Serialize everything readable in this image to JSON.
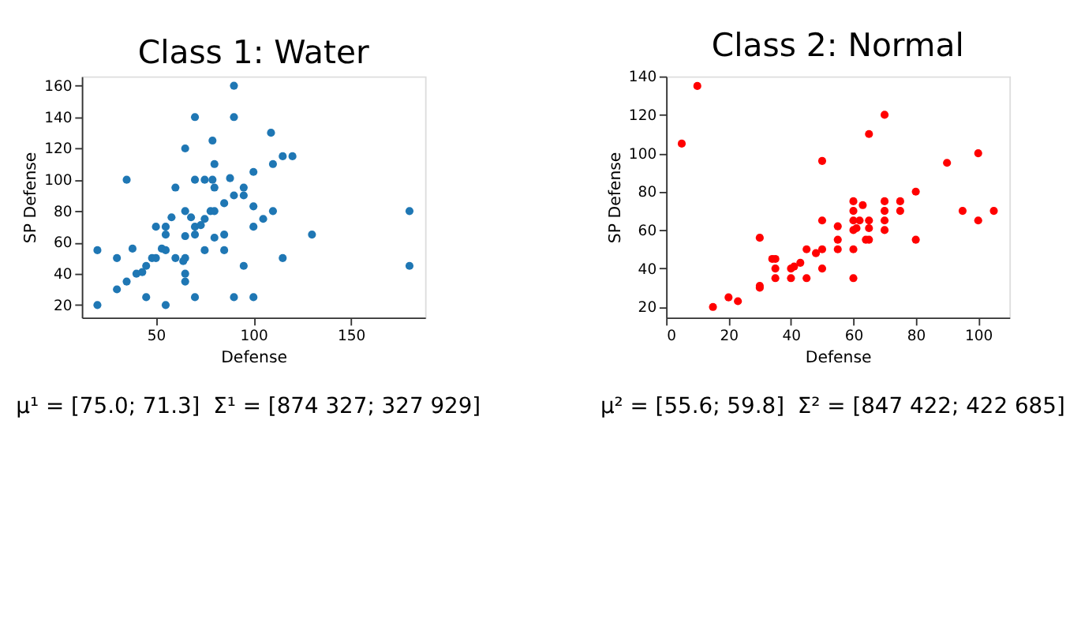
{
  "chart_data": [
    {
      "type": "scatter",
      "title": "Class 1: Water",
      "xlabel": "Defense",
      "ylabel": "SP Defense",
      "xlim": [
        12,
        188
      ],
      "xticks": [
        50,
        100,
        150
      ],
      "ylim": [
        12,
        166
      ],
      "yticks": [
        20,
        40,
        60,
        80,
        100,
        120,
        140,
        160
      ],
      "grid": false,
      "annotations": [
        "μ¹ = [75.0; 71.3]",
        "Σ¹ = [874 327; 327 929]"
      ],
      "series": [
        {
          "color": "#1f77b4",
          "x": [
            20,
            20,
            30,
            30,
            35,
            35,
            38,
            40,
            43,
            45,
            45,
            48,
            50,
            50,
            53,
            55,
            55,
            55,
            55,
            58,
            60,
            60,
            64,
            65,
            65,
            65,
            65,
            65,
            65,
            68,
            70,
            70,
            70,
            70,
            70,
            73,
            75,
            75,
            75,
            78,
            79,
            79,
            80,
            80,
            80,
            80,
            85,
            85,
            85,
            88,
            90,
            90,
            90,
            90,
            95,
            95,
            95,
            100,
            100,
            100,
            100,
            105,
            109,
            110,
            110,
            115,
            115,
            120,
            130,
            180,
            180
          ],
          "values": [
            55,
            20,
            50,
            30,
            100,
            35,
            56,
            40,
            41,
            45,
            25,
            50,
            70,
            50,
            56,
            70,
            65,
            55,
            20,
            76,
            95,
            50,
            48,
            120,
            80,
            64,
            50,
            40,
            35,
            76,
            140,
            100,
            70,
            65,
            25,
            71,
            100,
            75,
            55,
            80,
            125,
            100,
            80,
            110,
            95,
            63,
            85,
            65,
            55,
            101,
            160,
            140,
            90,
            25,
            95,
            90,
            45,
            105,
            83,
            70,
            25,
            75,
            130,
            110,
            80,
            115,
            50,
            115,
            65,
            80,
            45
          ]
        }
      ]
    },
    {
      "type": "scatter",
      "title": "Class 2: Normal",
      "xlabel": "Defense",
      "ylabel": "SP Defense",
      "xlim": [
        0,
        110
      ],
      "xticks": [
        0,
        20,
        40,
        60,
        80,
        100
      ],
      "ylim": [
        14.5,
        140
      ],
      "yticks": [
        20,
        40,
        60,
        80,
        100,
        120,
        140
      ],
      "grid": false,
      "annotations": [
        "μ² = [55.6; 59.8]",
        "Σ² = [847 422; 422 685]"
      ],
      "series": [
        {
          "color": "#ff0000",
          "x": [
            5,
            10,
            15,
            20,
            23,
            30,
            30,
            30,
            34,
            35,
            35,
            35,
            40,
            40,
            41,
            43,
            45,
            45,
            48,
            50,
            50,
            50,
            50,
            55,
            55,
            55,
            60,
            60,
            60,
            60,
            60,
            60,
            61,
            62,
            63,
            64,
            65,
            65,
            65,
            65,
            70,
            70,
            70,
            70,
            70,
            75,
            75,
            80,
            80,
            90,
            95,
            100,
            100,
            105
          ],
          "values": [
            105,
            135,
            20,
            25,
            23,
            56,
            31,
            30,
            45,
            45,
            40,
            35,
            40,
            35,
            41,
            43,
            50,
            35,
            48,
            96,
            65,
            50,
            40,
            62,
            55,
            50,
            75,
            70,
            65,
            60,
            50,
            35,
            61,
            65,
            73,
            55,
            110,
            65,
            61,
            55,
            120,
            75,
            70,
            65,
            60,
            75,
            70,
            80,
            55,
            95,
            70,
            100,
            65,
            70
          ]
        }
      ]
    }
  ]
}
